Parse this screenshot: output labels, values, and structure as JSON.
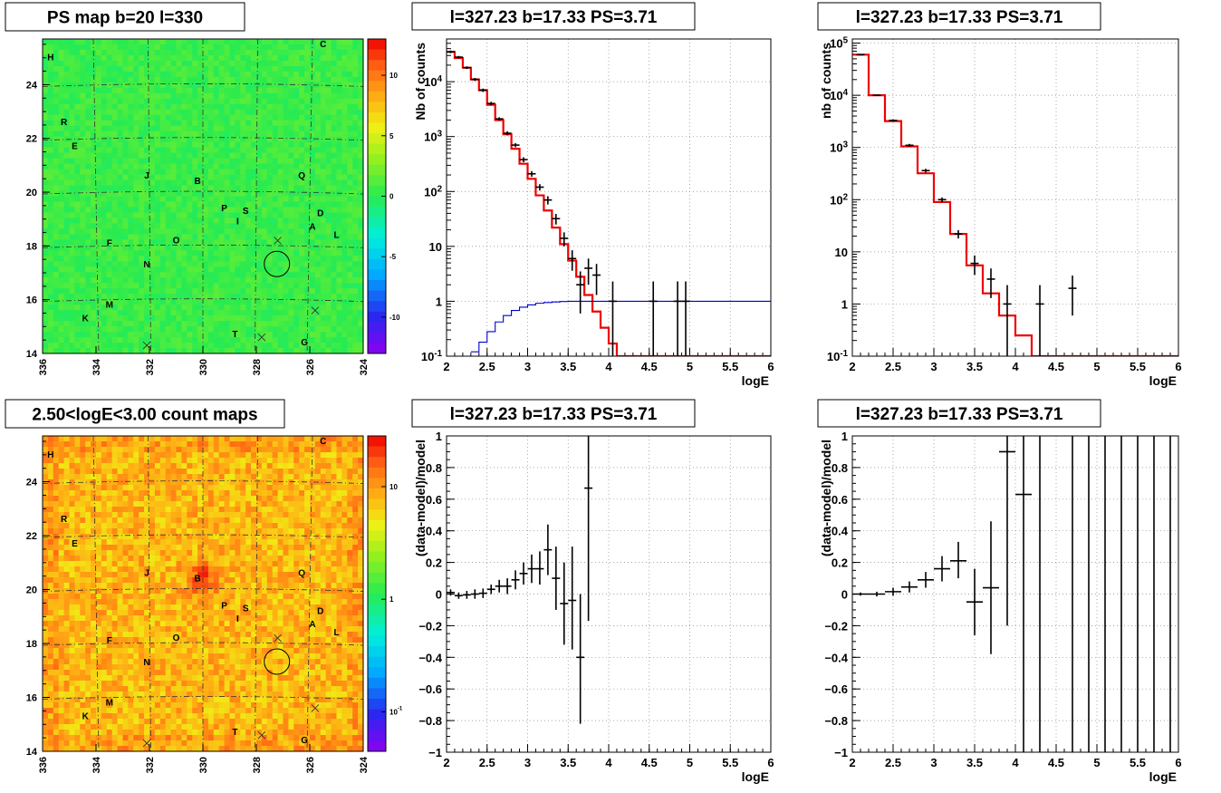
{
  "chart_data": [
    {
      "id": "ps_map",
      "type": "heatmap",
      "title": "PS map b=20 l=330",
      "x_tick_labels": [
        "336",
        "334",
        "332",
        "330",
        "328",
        "326",
        "324"
      ],
      "y_tick_labels": [
        "14",
        "16",
        "18",
        "20",
        "22",
        "24"
      ],
      "xlim": [
        336,
        324
      ],
      "ylim": [
        14,
        25.7
      ],
      "zlim": [
        -13,
        13
      ],
      "colorbar_tick_labels": [
        "10",
        "5",
        "0",
        "-5",
        "-10"
      ],
      "colorbar_values": [
        10,
        5,
        0,
        -5,
        -10
      ],
      "colormap": "rainbow",
      "dominant_color": "#33ee44",
      "grid": true,
      "sources": [
        {
          "label": "H",
          "l": 335.7,
          "b": 24.9
        },
        {
          "label": "C",
          "l": 325.5,
          "b": 25.4
        },
        {
          "label": "R",
          "l": 335.2,
          "b": 22.5
        },
        {
          "label": "E",
          "l": 334.8,
          "b": 21.6
        },
        {
          "label": "J",
          "l": 332.1,
          "b": 20.5
        },
        {
          "label": "B",
          "l": 330.2,
          "b": 20.3
        },
        {
          "label": "Q",
          "l": 326.3,
          "b": 20.5
        },
        {
          "label": "P",
          "l": 329.2,
          "b": 19.3
        },
        {
          "label": "S",
          "l": 328.4,
          "b": 19.2
        },
        {
          "label": "I",
          "l": 328.7,
          "b": 18.8
        },
        {
          "label": "D",
          "l": 325.6,
          "b": 19.1
        },
        {
          "label": "A",
          "l": 325.9,
          "b": 18.6
        },
        {
          "label": "L",
          "l": 325.0,
          "b": 18.3
        },
        {
          "label": "F",
          "l": 333.5,
          "b": 18.0
        },
        {
          "label": "O",
          "l": 331.0,
          "b": 18.1
        },
        {
          "label": "N",
          "l": 332.1,
          "b": 17.2
        },
        {
          "label": "M",
          "l": 333.5,
          "b": 15.7
        },
        {
          "label": "K",
          "l": 334.4,
          "b": 15.2
        },
        {
          "label": "T",
          "l": 328.8,
          "b": 14.6
        },
        {
          "label": "G",
          "l": 326.2,
          "b": 14.3
        }
      ],
      "crosses": [
        {
          "l": 327.2,
          "b": 18.2
        },
        {
          "l": 325.8,
          "b": 15.6
        },
        {
          "l": 327.8,
          "b": 14.6
        },
        {
          "l": 332.1,
          "b": 14.3
        }
      ],
      "circle": {
        "l": 327.23,
        "b": 17.33
      }
    },
    {
      "id": "spectrum1",
      "type": "line",
      "title": "l=327.23 b=17.33 PS=3.71",
      "xlabel": "logE",
      "ylabel": "Nb of counts",
      "log_y": true,
      "xlim": [
        2,
        6
      ],
      "ylim": [
        0.1,
        60000
      ],
      "x_ticks": [
        2,
        2.5,
        3,
        3.5,
        4,
        4.5,
        5,
        5.5,
        6
      ],
      "y_ticks": [
        0.1,
        1,
        10,
        100,
        1000,
        10000
      ],
      "y_tick_labels": [
        "10^-1",
        "1",
        "10",
        "10^2",
        "10^3",
        "10^4"
      ],
      "grid": true,
      "series": [
        {
          "color": "#ee0000",
          "style": "step",
          "bin_edges": [
            2,
            2.1,
            2.2,
            2.3,
            2.4,
            2.5,
            2.6,
            2.7,
            2.8,
            2.9,
            3.0,
            3.1,
            3.2,
            3.3,
            3.4,
            3.5,
            3.6,
            3.7,
            3.8,
            3.9,
            4.0,
            4.1,
            4.2,
            6.0
          ],
          "values": [
            35000,
            27000,
            18000,
            11000,
            7000,
            3800,
            2000,
            1100,
            600,
            320,
            170,
            85,
            45,
            22,
            11,
            5.5,
            2.8,
            1.3,
            0.65,
            0.33,
            0.17,
            0.1,
            0.1
          ]
        },
        {
          "color": "#0000cc",
          "style": "step",
          "bin_edges": [
            2.3,
            2.4,
            2.5,
            2.6,
            2.7,
            2.8,
            2.9,
            3.0,
            3.1,
            3.2,
            3.3,
            3.4,
            3.5,
            3.6,
            3.7,
            3.8,
            3.9,
            4.0,
            6.0
          ],
          "values": [
            0.12,
            0.18,
            0.28,
            0.42,
            0.55,
            0.68,
            0.78,
            0.86,
            0.92,
            0.95,
            0.97,
            0.99,
            1.0,
            1.0,
            1.0,
            1.0,
            1.0,
            1.0
          ]
        },
        {
          "color": "#000000",
          "style": "errorbar",
          "points": [
            {
              "x": 2.05,
              "y": 35000,
              "lo": 33000,
              "hi": 37000
            },
            {
              "x": 2.15,
              "y": 28000,
              "lo": 26500,
              "hi": 29500
            },
            {
              "x": 2.25,
              "y": 18000,
              "lo": 17000,
              "hi": 19000
            },
            {
              "x": 2.35,
              "y": 11000,
              "lo": 10300,
              "hi": 11700
            },
            {
              "x": 2.45,
              "y": 7000,
              "lo": 6500,
              "hi": 7500
            },
            {
              "x": 2.55,
              "y": 4000,
              "lo": 3700,
              "hi": 4300
            },
            {
              "x": 2.65,
              "y": 2100,
              "lo": 1950,
              "hi": 2250
            },
            {
              "x": 2.75,
              "y": 1150,
              "lo": 1050,
              "hi": 1250
            },
            {
              "x": 2.85,
              "y": 700,
              "lo": 640,
              "hi": 760
            },
            {
              "x": 2.95,
              "y": 380,
              "lo": 340,
              "hi": 420
            },
            {
              "x": 3.05,
              "y": 210,
              "lo": 185,
              "hi": 235
            },
            {
              "x": 3.15,
              "y": 120,
              "lo": 104,
              "hi": 136
            },
            {
              "x": 3.25,
              "y": 70,
              "lo": 58,
              "hi": 82
            },
            {
              "x": 3.35,
              "y": 32,
              "lo": 25,
              "hi": 39
            },
            {
              "x": 3.45,
              "y": 14,
              "lo": 10,
              "hi": 18
            },
            {
              "x": 3.55,
              "y": 6,
              "lo": 3.6,
              "hi": 8.5
            },
            {
              "x": 3.65,
              "y": 2,
              "lo": 0.6,
              "hi": 3.5
            },
            {
              "x": 3.75,
              "y": 4,
              "lo": 2,
              "hi": 6
            },
            {
              "x": 3.85,
              "y": 3,
              "lo": 1.3,
              "hi": 4.8
            },
            {
              "x": 4.05,
              "y": 1,
              "lo": 0.1,
              "hi": 2.3
            },
            {
              "x": 4.55,
              "y": 1,
              "lo": 0.1,
              "hi": 2.3
            },
            {
              "x": 4.85,
              "y": 1,
              "lo": 0.1,
              "hi": 2.3
            },
            {
              "x": 4.95,
              "y": 1,
              "lo": 0.1,
              "hi": 2.3
            }
          ]
        }
      ]
    },
    {
      "id": "spectrum2",
      "type": "line",
      "title": "l=327.23 b=17.33 PS=3.71",
      "xlabel": "logE",
      "ylabel": "nb of counts",
      "log_y": true,
      "xlim": [
        2,
        6
      ],
      "ylim": [
        0.1,
        120000
      ],
      "x_ticks": [
        2,
        2.5,
        3,
        3.5,
        4,
        4.5,
        5,
        5.5,
        6
      ],
      "y_ticks": [
        0.1,
        1,
        10,
        100,
        1000,
        10000,
        100000
      ],
      "y_tick_labels": [
        "10^-1",
        "1",
        "10",
        "10^2",
        "10^3",
        "10^4",
        "10^5"
      ],
      "grid": true,
      "series": [
        {
          "color": "#ee0000",
          "style": "step",
          "bin_edges": [
            2.0,
            2.2,
            2.4,
            2.6,
            2.8,
            3.0,
            3.2,
            3.4,
            3.6,
            3.8,
            4.0,
            4.2,
            4.4,
            6.0
          ],
          "values": [
            60000,
            10000,
            3200,
            1050,
            320,
            90,
            22,
            5.5,
            1.6,
            0.6,
            0.25,
            0.1,
            0.1
          ]
        },
        {
          "color": "#000000",
          "style": "errorbar",
          "points": [
            {
              "x": 2.1,
              "y": 60000,
              "lo": 58000,
              "hi": 62000
            },
            {
              "x": 2.3,
              "y": 10000,
              "lo": 9700,
              "hi": 10300
            },
            {
              "x": 2.5,
              "y": 3300,
              "lo": 3150,
              "hi": 3450
            },
            {
              "x": 2.7,
              "y": 1100,
              "lo": 1030,
              "hi": 1170
            },
            {
              "x": 2.9,
              "y": 360,
              "lo": 330,
              "hi": 390
            },
            {
              "x": 3.1,
              "y": 100,
              "lo": 90,
              "hi": 110
            },
            {
              "x": 3.3,
              "y": 22,
              "lo": 18,
              "hi": 26
            },
            {
              "x": 3.5,
              "y": 6,
              "lo": 3.6,
              "hi": 8.5
            },
            {
              "x": 3.7,
              "y": 3,
              "lo": 1.3,
              "hi": 4.8
            },
            {
              "x": 3.9,
              "y": 1,
              "lo": 0.1,
              "hi": 2.3
            },
            {
              "x": 4.3,
              "y": 1,
              "lo": 0.1,
              "hi": 2.3
            },
            {
              "x": 4.7,
              "y": 2,
              "lo": 0.6,
              "hi": 3.5
            }
          ]
        }
      ]
    },
    {
      "id": "count_map",
      "type": "heatmap",
      "title": "2.50<logE<3.00 count maps",
      "x_tick_labels": [
        "336",
        "334",
        "332",
        "330",
        "328",
        "326",
        "324"
      ],
      "y_tick_labels": [
        "14",
        "16",
        "18",
        "20",
        "22",
        "24"
      ],
      "xlim": [
        336,
        324
      ],
      "ylim": [
        14,
        25.7
      ],
      "log_z": true,
      "colorbar_tick_labels": [
        "10",
        "1",
        "10^-1"
      ],
      "colorbar_values": [
        10,
        1,
        0.1
      ],
      "colormap": "rainbow",
      "dominant_color": "#f0a030",
      "grid": true,
      "hotspot": {
        "l": 330.0,
        "b": 20.4
      }
    },
    {
      "id": "residual1",
      "type": "scatter",
      "title": "l=327.23 b=17.33 PS=3.71",
      "xlabel": "logE",
      "ylabel": "(data-model)/model",
      "xlim": [
        2,
        6
      ],
      "ylim": [
        -1,
        1
      ],
      "x_ticks": [
        2,
        2.5,
        3,
        3.5,
        4,
        4.5,
        5,
        5.5,
        6
      ],
      "y_ticks": [
        -1,
        -0.8,
        -0.6,
        -0.4,
        -0.2,
        0,
        0.2,
        0.4,
        0.6,
        0.8,
        1
      ],
      "y_tick_labels": [
        "−1",
        "−0.8",
        "−0.6",
        "−0.4",
        "−0.2",
        "0",
        "0.2",
        "0.4",
        "0.6",
        "0.8",
        "1"
      ],
      "grid": true,
      "series": [
        {
          "color": "#000000",
          "style": "errorbar",
          "xerr": 0.05,
          "points": [
            {
              "x": 2.05,
              "y": 0.01,
              "lo": -0.01,
              "hi": 0.03
            },
            {
              "x": 2.15,
              "y": -0.01,
              "lo": -0.03,
              "hi": 0.01
            },
            {
              "x": 2.25,
              "y": -0.005,
              "lo": -0.03,
              "hi": 0.02
            },
            {
              "x": 2.35,
              "y": 0.0,
              "lo": -0.03,
              "hi": 0.03
            },
            {
              "x": 2.45,
              "y": 0.005,
              "lo": -0.025,
              "hi": 0.035
            },
            {
              "x": 2.55,
              "y": 0.03,
              "lo": 0.0,
              "hi": 0.06
            },
            {
              "x": 2.65,
              "y": 0.05,
              "lo": 0.01,
              "hi": 0.09
            },
            {
              "x": 2.75,
              "y": 0.05,
              "lo": 0.0,
              "hi": 0.1
            },
            {
              "x": 2.85,
              "y": 0.09,
              "lo": 0.03,
              "hi": 0.15
            },
            {
              "x": 2.95,
              "y": 0.13,
              "lo": 0.06,
              "hi": 0.2
            },
            {
              "x": 3.05,
              "y": 0.16,
              "lo": 0.07,
              "hi": 0.25
            },
            {
              "x": 3.15,
              "y": 0.16,
              "lo": 0.06,
              "hi": 0.27
            },
            {
              "x": 3.25,
              "y": 0.28,
              "lo": 0.12,
              "hi": 0.44
            },
            {
              "x": 3.35,
              "y": 0.1,
              "lo": -0.1,
              "hi": 0.3
            },
            {
              "x": 3.45,
              "y": -0.06,
              "lo": -0.32,
              "hi": 0.2
            },
            {
              "x": 3.55,
              "y": -0.04,
              "lo": -0.35,
              "hi": 0.3
            },
            {
              "x": 3.65,
              "y": -0.4,
              "lo": -0.82,
              "hi": 0.0
            },
            {
              "x": 3.75,
              "y": 0.67,
              "lo": -0.17,
              "hi": 1.0
            }
          ]
        }
      ]
    },
    {
      "id": "residual2",
      "type": "scatter",
      "title": "l=327.23 b=17.33 PS=3.71",
      "xlabel": "logE",
      "ylabel": "(data-model)/model",
      "xlim": [
        2,
        6
      ],
      "ylim": [
        -1,
        1
      ],
      "x_ticks": [
        2,
        2.5,
        3,
        3.5,
        4,
        4.5,
        5,
        5.5,
        6
      ],
      "y_ticks": [
        -1,
        -0.8,
        -0.6,
        -0.4,
        -0.2,
        0,
        0.2,
        0.4,
        0.6,
        0.8,
        1
      ],
      "y_tick_labels": [
        "−1",
        "−0.8",
        "−0.6",
        "−0.4",
        "−0.2",
        "0",
        "0.2",
        "0.4",
        "0.6",
        "0.8",
        "1"
      ],
      "grid": true,
      "series": [
        {
          "color": "#000000",
          "style": "errorbar",
          "xerr": 0.1,
          "points": [
            {
              "x": 2.1,
              "y": 0.0,
              "lo": -0.01,
              "hi": 0.01
            },
            {
              "x": 2.3,
              "y": 0.0,
              "lo": -0.015,
              "hi": 0.015
            },
            {
              "x": 2.5,
              "y": 0.015,
              "lo": -0.01,
              "hi": 0.04
            },
            {
              "x": 2.7,
              "y": 0.045,
              "lo": 0.01,
              "hi": 0.08
            },
            {
              "x": 2.9,
              "y": 0.09,
              "lo": 0.04,
              "hi": 0.14
            },
            {
              "x": 3.1,
              "y": 0.16,
              "lo": 0.08,
              "hi": 0.24
            },
            {
              "x": 3.3,
              "y": 0.21,
              "lo": 0.1,
              "hi": 0.33
            },
            {
              "x": 3.5,
              "y": -0.05,
              "lo": -0.26,
              "hi": 0.16
            },
            {
              "x": 3.7,
              "y": 0.04,
              "lo": -0.38,
              "hi": 0.46
            },
            {
              "x": 3.9,
              "y": 0.9,
              "lo": -0.2,
              "hi": 1.0
            },
            {
              "x": 4.1,
              "y": 0.63,
              "lo": -1.0,
              "hi": 1.0
            },
            {
              "x": 4.3,
              "y": null,
              "lo": -1.0,
              "hi": 1.0
            },
            {
              "x": 4.7,
              "y": null,
              "lo": -1.0,
              "hi": 1.0
            },
            {
              "x": 4.9,
              "y": null,
              "lo": -1.0,
              "hi": 1.0
            },
            {
              "x": 5.1,
              "y": null,
              "lo": -1.0,
              "hi": 1.0
            },
            {
              "x": 5.3,
              "y": null,
              "lo": -1.0,
              "hi": 1.0
            },
            {
              "x": 5.5,
              "y": null,
              "lo": -1.0,
              "hi": 1.0
            },
            {
              "x": 5.7,
              "y": null,
              "lo": -1.0,
              "hi": 1.0
            },
            {
              "x": 5.9,
              "y": null,
              "lo": -1.0,
              "hi": 1.0
            }
          ]
        }
      ]
    }
  ]
}
